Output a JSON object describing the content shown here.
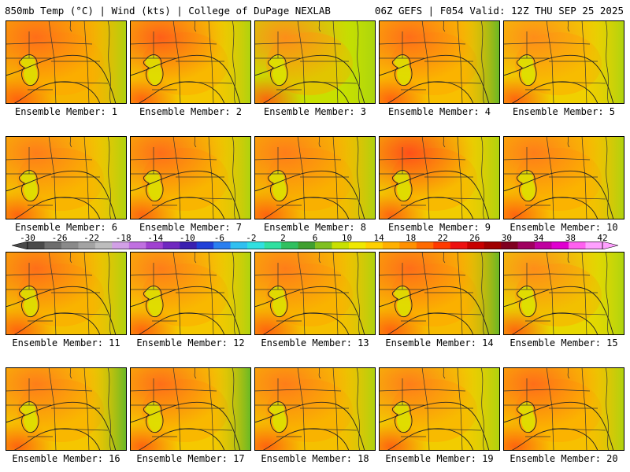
{
  "header": {
    "left_title": "850mb Temp (°C) | Wind (kts) | College of DuPage NEXLAB",
    "right_title": "06Z GEFS | F054 Valid: 12Z THU SEP 25 2025"
  },
  "members": [
    {
      "label": "Ensemble Member: 1",
      "dominant_color": "#f7b500",
      "warm_color": "#ff6a1a"
    },
    {
      "label": "Ensemble Member: 2",
      "dominant_color": "#f5c800",
      "warm_color": "#ff5a1a"
    },
    {
      "label": "Ensemble Member: 3",
      "dominant_color": "#c8e000",
      "warm_color": "#ff8a1a"
    },
    {
      "label": "Ensemble Member: 4",
      "dominant_color": "#f8bf00",
      "warm_color": "#ff6a1a"
    },
    {
      "label": "Ensemble Member: 5",
      "dominant_color": "#f0d000",
      "warm_color": "#ff8a1a"
    },
    {
      "label": "Ensemble Member: 6",
      "dominant_color": "#f5c400",
      "warm_color": "#ff7a1a"
    },
    {
      "label": "Ensemble Member: 7",
      "dominant_color": "#f5c400",
      "warm_color": "#ff6a1a"
    },
    {
      "label": "Ensemble Member: 8",
      "dominant_color": "#f5bb00",
      "warm_color": "#ff7a1a"
    },
    {
      "label": "Ensemble Member: 9",
      "dominant_color": "#f2cc00",
      "warm_color": "#ff4a1a"
    },
    {
      "label": "Ensemble Member: 10",
      "dominant_color": "#f7c000",
      "warm_color": "#ff7a1a"
    },
    {
      "label": "Ensemble Member: 11",
      "dominant_color": "#f5c000",
      "warm_color": "#ff6a1a"
    },
    {
      "label": "Ensemble Member: 12",
      "dominant_color": "#f5c800",
      "warm_color": "#ff7a1a"
    },
    {
      "label": "Ensemble Member: 13",
      "dominant_color": "#f5c000",
      "warm_color": "#ff7a1a"
    },
    {
      "label": "Ensemble Member: 14",
      "dominant_color": "#f7bb00",
      "warm_color": "#ff6a1a"
    },
    {
      "label": "Ensemble Member: 15",
      "dominant_color": "#e8d800",
      "warm_color": "#ff8a1a"
    },
    {
      "label": "Ensemble Member: 16",
      "dominant_color": "#f5c600",
      "warm_color": "#ff7a1a"
    },
    {
      "label": "Ensemble Member: 17",
      "dominant_color": "#f5c800",
      "warm_color": "#ff6a1a"
    },
    {
      "label": "Ensemble Member: 18",
      "dominant_color": "#f5c000",
      "warm_color": "#ff7a1a"
    },
    {
      "label": "Ensemble Member: 19",
      "dominant_color": "#f2cc00",
      "warm_color": "#ff7a1a"
    },
    {
      "label": "Ensemble Member: 20",
      "dominant_color": "#f7c000",
      "warm_color": "#ff6a1a"
    }
  ],
  "colorbar": {
    "labels": [
      "-30",
      "-26",
      "-22",
      "-18",
      "-14",
      "-10",
      "-6",
      "-2",
      "2",
      "6",
      "10",
      "14",
      "18",
      "22",
      "26",
      "30",
      "34",
      "38",
      "42"
    ],
    "colors": [
      "#4a4a4a",
      "#6e6e6e",
      "#8a8a8a",
      "#a3a3a3",
      "#bdbdbd",
      "#d2a0e6",
      "#c070e0",
      "#a040d0",
      "#7028c0",
      "#3a20b0",
      "#2040d8",
      "#2a7ff0",
      "#30c0f0",
      "#30e0e0",
      "#30e0a0",
      "#30c060",
      "#40a030",
      "#80c020",
      "#c8e000",
      "#f0e800",
      "#ffd000",
      "#ffb000",
      "#ff9000",
      "#ff6a00",
      "#ff3a00",
      "#ee1010",
      "#c80000",
      "#a00000",
      "#800020",
      "#a00060",
      "#c000a0",
      "#e000d0",
      "#ff60f0",
      "#ffa0ff"
    ]
  }
}
